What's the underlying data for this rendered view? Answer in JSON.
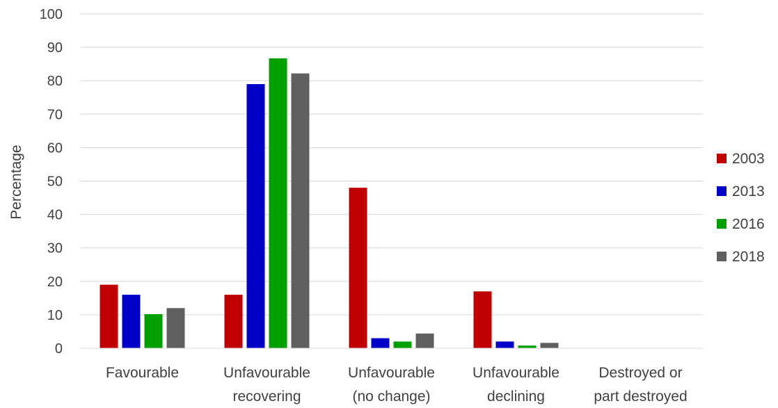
{
  "chart_data": {
    "type": "bar",
    "title": "",
    "xlabel": "",
    "ylabel": "Percentage",
    "ylim": [
      0,
      100
    ],
    "yticks": [
      0,
      10,
      20,
      30,
      40,
      50,
      60,
      70,
      80,
      90,
      100
    ],
    "grid": true,
    "legend_position": "right",
    "categories": [
      [
        "Favourable"
      ],
      [
        "Unfavourable",
        "recovering"
      ],
      [
        "Unfavourable",
        "(no change)"
      ],
      [
        "Unfavourable",
        "declining"
      ],
      [
        "Destroyed or",
        "part destroyed"
      ]
    ],
    "series": [
      {
        "name": "2003",
        "color": "#c00000",
        "values": [
          19,
          16,
          48,
          17,
          0
        ]
      },
      {
        "name": "2013",
        "color": "#0000c8",
        "values": [
          16,
          79,
          3,
          2,
          0
        ]
      },
      {
        "name": "2016",
        "color": "#00a000",
        "values": [
          10.2,
          86.7,
          2,
          0.8,
          0
        ]
      },
      {
        "name": "2018",
        "color": "#5f5f5f",
        "values": [
          12,
          82.2,
          4.4,
          1.6,
          0
        ]
      }
    ]
  }
}
